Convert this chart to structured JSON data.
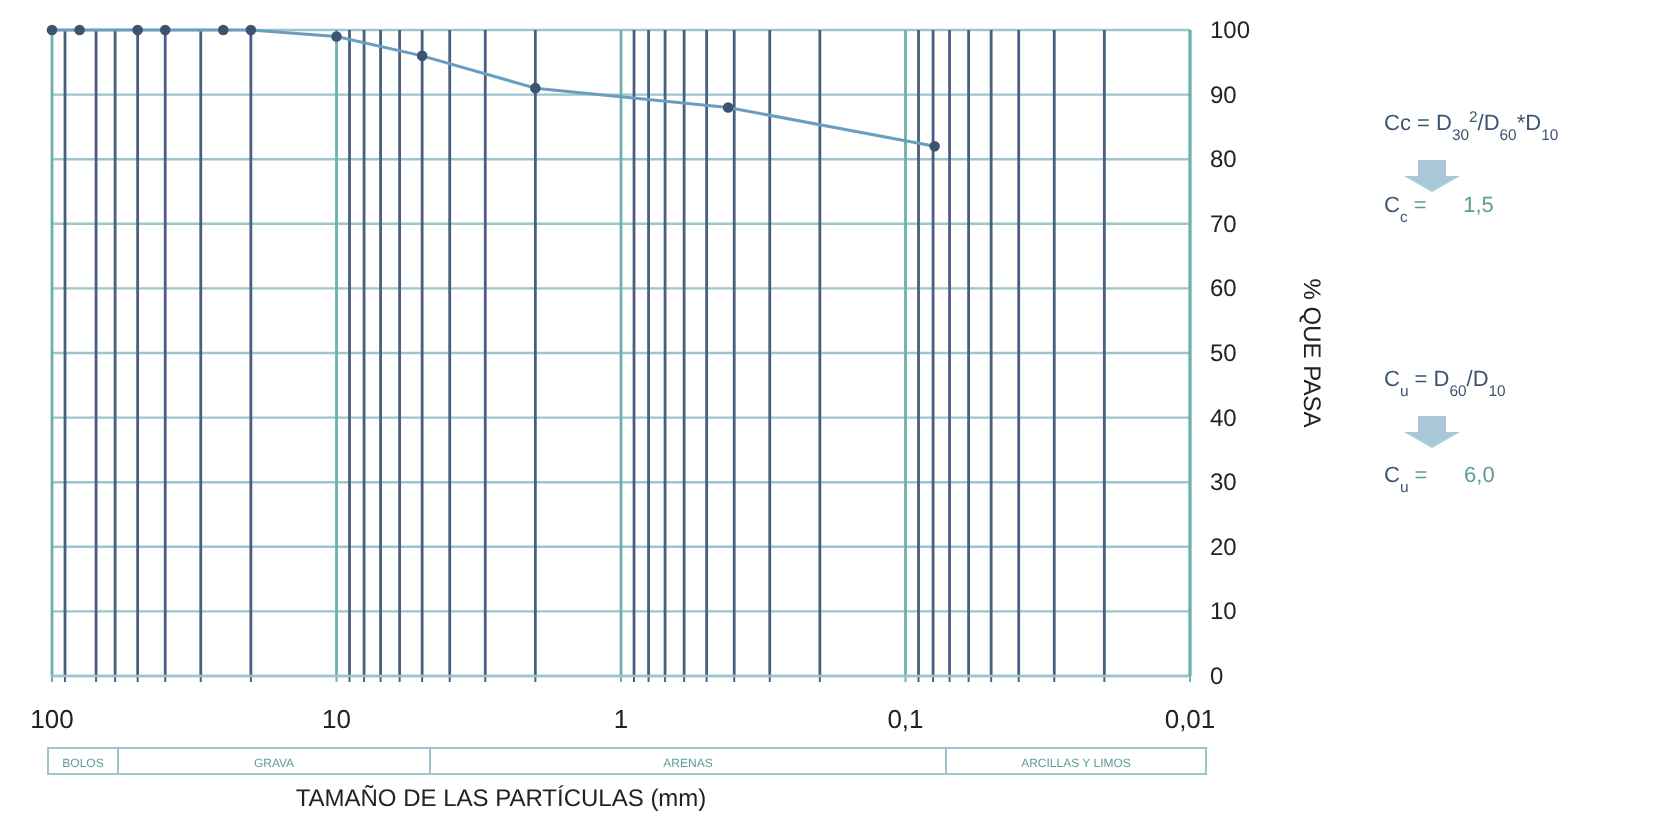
{
  "chart_data": {
    "type": "line",
    "xlabel": "TAMAÑO DE LAS PARTÍCULAS (mm)",
    "ylabel": "% QUE PASA",
    "log": "x",
    "xlim": [
      100,
      0.01
    ],
    "ylim": [
      0,
      100
    ],
    "xticks": [
      {
        "value": 100,
        "label": "100"
      },
      {
        "value": 90,
        "label": null
      },
      {
        "value": 70,
        "label": null
      },
      {
        "value": 60,
        "label": null
      },
      {
        "value": 50,
        "label": null
      },
      {
        "value": 40,
        "label": null
      },
      {
        "value": 30,
        "label": null
      },
      {
        "value": 20,
        "label": null
      },
      {
        "value": 10,
        "label": "10"
      },
      {
        "value": 9,
        "label": null
      },
      {
        "value": 8,
        "label": null
      },
      {
        "value": 7,
        "label": null
      },
      {
        "value": 6,
        "label": null
      },
      {
        "value": 5,
        "label": null
      },
      {
        "value": 4,
        "label": null
      },
      {
        "value": 3,
        "label": null
      },
      {
        "value": 2,
        "label": null
      },
      {
        "value": 1,
        "label": "1"
      },
      {
        "value": 0.9,
        "label": null
      },
      {
        "value": 0.8,
        "label": null
      },
      {
        "value": 0.7,
        "label": null
      },
      {
        "value": 0.6,
        "label": null
      },
      {
        "value": 0.5,
        "label": null
      },
      {
        "value": 0.4,
        "label": null
      },
      {
        "value": 0.3,
        "label": null
      },
      {
        "value": 0.2,
        "label": null
      },
      {
        "value": 0.1,
        "label": "0,1"
      },
      {
        "value": 0.09,
        "label": null
      },
      {
        "value": 0.08,
        "label": null
      },
      {
        "value": 0.07,
        "label": null
      },
      {
        "value": 0.06,
        "label": null
      },
      {
        "value": 0.05,
        "label": null
      },
      {
        "value": 0.04,
        "label": null
      },
      {
        "value": 0.03,
        "label": null
      },
      {
        "value": 0.02,
        "label": null
      },
      {
        "value": 0.01,
        "label": "0,01"
      }
    ],
    "yticks": [
      0,
      10,
      20,
      30,
      40,
      50,
      60,
      70,
      80,
      90,
      100
    ],
    "grid": true,
    "marker": "circle",
    "line_style": "solid",
    "series": [
      {
        "color": "#6a9ec0",
        "x": [
          100,
          80,
          50,
          40,
          25,
          20,
          10,
          5,
          2,
          0.42,
          0.079
        ],
        "values": [
          100,
          100,
          100,
          100,
          100,
          100,
          99,
          96,
          91,
          88,
          82
        ]
      }
    ],
    "annotations": [
      "Cc = D$_{30}$$^{2}$/D$_{60}$*D$_{10}$",
      "C$_{c}$ =      1,5",
      "C$_{u}$ = D$_{60}$/D$_{10}$",
      "C$_{u}$ =      6,0",
      "BOLOS",
      "GRAVA",
      "ARENAS",
      "ARCILLAS Y LIMOS"
    ]
  }
}
